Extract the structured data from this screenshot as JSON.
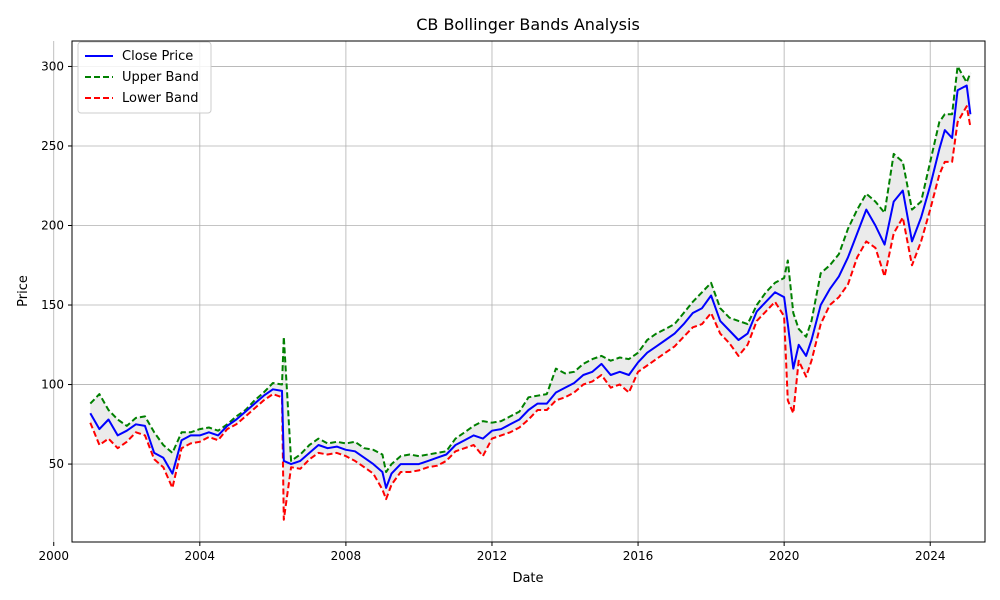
{
  "chart_data": {
    "type": "line",
    "title": "CB Bollinger Bands Analysis",
    "xlabel": "Date",
    "ylabel": "Price",
    "xlim": [
      2000.5,
      2025.5
    ],
    "ylim": [
      1,
      316
    ],
    "x_ticks": [
      2000,
      2004,
      2008,
      2012,
      2016,
      2020,
      2024
    ],
    "y_ticks": [
      50,
      100,
      150,
      200,
      250,
      300
    ],
    "grid": true,
    "legend": "upper-left",
    "band_fill": {
      "color": "#d3d3d3",
      "opacity": 0.45,
      "between": [
        "Upper Band",
        "Lower Band"
      ]
    },
    "x": [
      2001.0,
      2001.25,
      2001.5,
      2001.75,
      2002.0,
      2002.25,
      2002.5,
      2002.75,
      2003.0,
      2003.25,
      2003.5,
      2003.75,
      2004.0,
      2004.25,
      2004.5,
      2004.75,
      2005.0,
      2005.25,
      2005.5,
      2005.75,
      2006.0,
      2006.25,
      2006.3,
      2006.5,
      2006.75,
      2007.0,
      2007.25,
      2007.5,
      2007.75,
      2008.0,
      2008.25,
      2008.5,
      2008.75,
      2009.0,
      2009.1,
      2009.25,
      2009.5,
      2009.75,
      2010.0,
      2010.25,
      2010.5,
      2010.75,
      2011.0,
      2011.25,
      2011.5,
      2011.75,
      2012.0,
      2012.25,
      2012.5,
      2012.75,
      2013.0,
      2013.25,
      2013.5,
      2013.75,
      2014.0,
      2014.25,
      2014.5,
      2014.75,
      2015.0,
      2015.25,
      2015.5,
      2015.75,
      2016.0,
      2016.25,
      2016.5,
      2016.75,
      2017.0,
      2017.25,
      2017.5,
      2017.75,
      2018.0,
      2018.25,
      2018.5,
      2018.75,
      2019.0,
      2019.25,
      2019.5,
      2019.75,
      2020.0,
      2020.1,
      2020.25,
      2020.4,
      2020.6,
      2020.75,
      2021.0,
      2021.25,
      2021.5,
      2021.75,
      2022.0,
      2022.25,
      2022.5,
      2022.75,
      2023.0,
      2023.25,
      2023.5,
      2023.75,
      2024.0,
      2024.25,
      2024.4,
      2024.6,
      2024.75,
      2025.0,
      2025.1
    ],
    "series": [
      {
        "name": "Close Price",
        "color": "#0000ff",
        "dash": "solid",
        "values": [
          82,
          72,
          78,
          68,
          71,
          75,
          74,
          57,
          54,
          44,
          65,
          68,
          68,
          70,
          68,
          74,
          78,
          83,
          88,
          93,
          97,
          96,
          52,
          50,
          52,
          57,
          62,
          60,
          61,
          59,
          58,
          54,
          50,
          45,
          35,
          44,
          50,
          50,
          50,
          52,
          54,
          56,
          62,
          65,
          68,
          66,
          71,
          72,
          75,
          78,
          84,
          88,
          88,
          95,
          98,
          101,
          106,
          108,
          113,
          106,
          108,
          106,
          114,
          120,
          124,
          128,
          132,
          138,
          145,
          148,
          156,
          140,
          134,
          128,
          132,
          146,
          152,
          158,
          155,
          138,
          110,
          125,
          118,
          128,
          150,
          160,
          168,
          180,
          195,
          210,
          200,
          188,
          215,
          222,
          190,
          205,
          225,
          248,
          260,
          255,
          285,
          288,
          270
        ]
      },
      {
        "name": "Upper Band",
        "color": "#008000",
        "dash": "dashed",
        "values": [
          88,
          94,
          84,
          78,
          74,
          79,
          80,
          70,
          62,
          57,
          70,
          70,
          72,
          73,
          71,
          75,
          80,
          84,
          90,
          95,
          101,
          100,
          130,
          52,
          56,
          62,
          66,
          63,
          64,
          63,
          64,
          60,
          59,
          56,
          45,
          50,
          55,
          56,
          55,
          56,
          57,
          58,
          66,
          70,
          74,
          77,
          76,
          77,
          80,
          83,
          92,
          93,
          94,
          110,
          107,
          108,
          113,
          116,
          118,
          115,
          117,
          116,
          120,
          128,
          132,
          135,
          138,
          145,
          152,
          158,
          164,
          148,
          142,
          140,
          138,
          150,
          158,
          164,
          167,
          178,
          145,
          135,
          130,
          140,
          170,
          175,
          182,
          198,
          210,
          220,
          215,
          208,
          245,
          240,
          210,
          215,
          240,
          265,
          270,
          270,
          300,
          290,
          296
        ]
      },
      {
        "name": "Lower Band",
        "color": "#ff0000",
        "dash": "dashed",
        "values": [
          76,
          62,
          66,
          60,
          64,
          70,
          68,
          53,
          48,
          35,
          60,
          63,
          64,
          67,
          65,
          72,
          75,
          80,
          85,
          90,
          94,
          92,
          15,
          48,
          47,
          53,
          57,
          56,
          57,
          55,
          52,
          48,
          44,
          34,
          28,
          37,
          45,
          45,
          46,
          48,
          49,
          52,
          58,
          60,
          62,
          55,
          66,
          68,
          70,
          73,
          78,
          84,
          84,
          90,
          92,
          95,
          100,
          102,
          106,
          98,
          100,
          95,
          108,
          112,
          116,
          120,
          124,
          130,
          136,
          138,
          145,
          132,
          126,
          118,
          125,
          140,
          146,
          152,
          143,
          90,
          82,
          115,
          105,
          115,
          138,
          150,
          155,
          163,
          180,
          190,
          186,
          168,
          195,
          205,
          175,
          190,
          210,
          232,
          240,
          240,
          265,
          275,
          262
        ]
      }
    ]
  }
}
